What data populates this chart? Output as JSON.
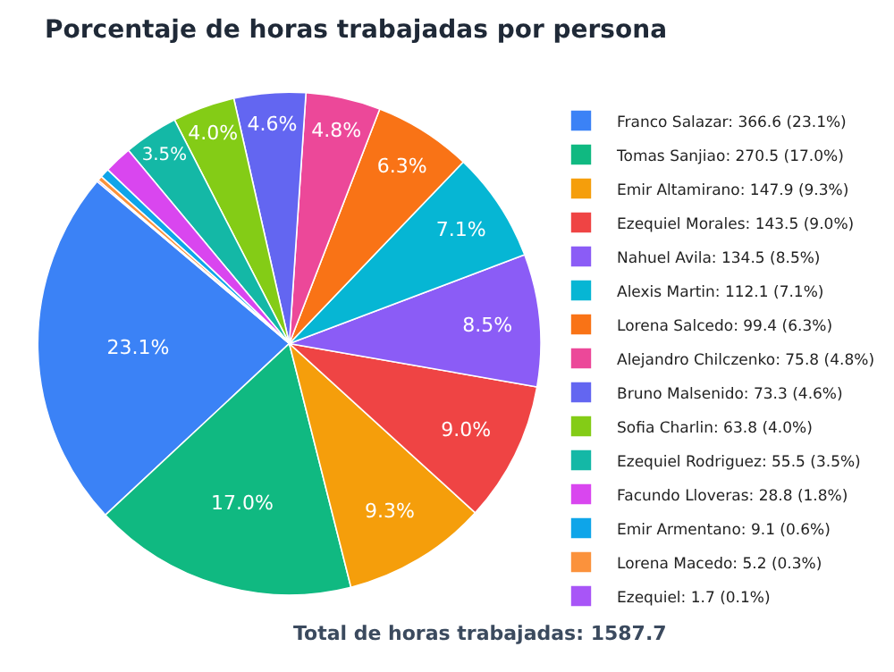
{
  "chart_data": {
    "type": "pie",
    "title": "Porcentaje de horas trabajadas por persona",
    "categories": [
      "Franco Salazar: 366.6 (23.1%)",
      "Tomas Sanjiao: 270.5 (17.0%)",
      "Emir Altamirano: 147.9 (9.3%)",
      "Ezequiel Morales: 143.5 (9.0%)",
      "Nahuel Avila: 134.5 (8.5%)",
      "Alexis Martin: 112.1 (7.1%)",
      "Lorena Salcedo: 99.4 (6.3%)",
      "Alejandro Chilczenko: 75.8 (4.8%)",
      "Bruno Malsenido: 73.3 (4.6%)",
      "Sofia Charlin: 63.8 (4.0%)",
      "Ezequiel Rodriguez: 55.5 (3.5%)",
      "Facundo Lloveras: 28.8 (1.8%)",
      "Emir Armentano: 9.1 (0.6%)",
      "Lorena Macedo: 5.2 (0.3%)",
      "Ezequiel: 1.7 (0.1%)"
    ],
    "values": [
      23.1,
      17.0,
      9.3,
      9.0,
      8.5,
      7.1,
      6.3,
      4.8,
      4.6,
      4.0,
      3.5,
      1.8,
      0.6,
      0.3,
      0.1
    ],
    "value_labels": [
      "23.1%",
      "17.0%",
      "9.3%",
      "9.0%",
      "8.5%",
      "7.1%",
      "6.3%",
      "4.8%",
      "4.6%",
      "4.0%",
      "3.5%",
      null,
      null,
      null,
      null
    ],
    "colors": [
      "#3b82f6",
      "#10b981",
      "#f59e0b",
      "#ef4444",
      "#8b5cf6",
      "#06b6d4",
      "#f97316",
      "#ec4899",
      "#6366f1",
      "#84cc16",
      "#14b8a6",
      "#d946ef",
      "#0ea5e9",
      "#fb923c",
      "#a855f7"
    ],
    "legend": "right",
    "annotations": [
      "Total de horas trabajadas: 1587.7"
    ]
  }
}
